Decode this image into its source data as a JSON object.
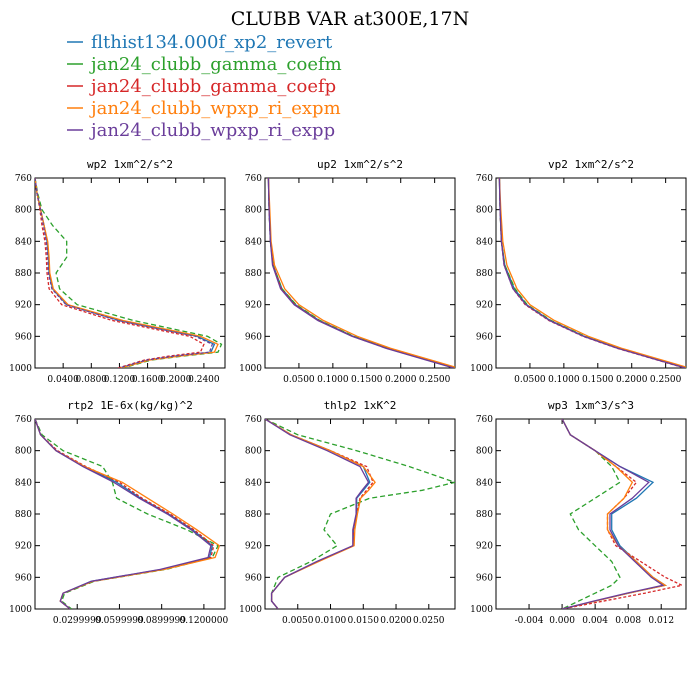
{
  "figure": {
    "title": "CLUBB VAR at300E,17N"
  },
  "legend": [
    {
      "label": "flthist134.000f_xp2_revert",
      "color": "#1f77b4"
    },
    {
      "label": "jan24_clubb_gamma_coefm",
      "color": "#2ca02c"
    },
    {
      "label": "jan24_clubb_gamma_coefp",
      "color": "#d62728"
    },
    {
      "label": "jan24_clubb_wpxp_ri_expm",
      "color": "#ff7f0e"
    },
    {
      "label": "jan24_clubb_wpxp_ri_expp",
      "color": "#6a3d9a"
    }
  ],
  "chart_data": [
    {
      "type": "line",
      "title": "wp2  1xm^2/s^2",
      "xlim": [
        0.0,
        0.27
      ],
      "ylim": [
        760,
        1000
      ],
      "xticks": [
        0.04,
        0.08,
        0.12,
        0.16,
        0.2,
        0.24
      ],
      "xtick_labels": [
        "0.0400",
        "0.0800",
        "0.1200",
        "0.1600",
        "0.2000",
        "0.2400"
      ],
      "yticks": [
        760,
        800,
        840,
        880,
        920,
        960,
        1000
      ],
      "y": [
        760,
        780,
        800,
        820,
        840,
        860,
        880,
        900,
        920,
        940,
        960,
        970,
        980,
        985,
        990,
        1000
      ],
      "series": [
        {
          "values": [
            0.0,
            0.003,
            0.008,
            0.013,
            0.017,
            0.019,
            0.02,
            0.025,
            0.045,
            0.12,
            0.23,
            0.255,
            0.25,
            0.2,
            0.16,
            0.12
          ],
          "color": "#1f77b4",
          "dash": ""
        },
        {
          "values": [
            0.0,
            0.004,
            0.01,
            0.025,
            0.045,
            0.045,
            0.03,
            0.035,
            0.06,
            0.14,
            0.245,
            0.265,
            0.26,
            0.21,
            0.165,
            0.125
          ],
          "color": "#2ca02c",
          "dash": "5,3"
        },
        {
          "values": [
            0.0,
            0.003,
            0.007,
            0.01,
            0.014,
            0.016,
            0.017,
            0.02,
            0.038,
            0.11,
            0.22,
            0.24,
            0.235,
            0.19,
            0.155,
            0.118
          ],
          "color": "#d62728",
          "dash": "3,2"
        },
        {
          "values": [
            0.0,
            0.003,
            0.008,
            0.013,
            0.018,
            0.02,
            0.021,
            0.026,
            0.047,
            0.125,
            0.235,
            0.26,
            0.255,
            0.205,
            0.162,
            0.122
          ],
          "color": "#ff7f0e",
          "dash": ""
        },
        {
          "values": [
            0.0,
            0.003,
            0.008,
            0.012,
            0.016,
            0.018,
            0.019,
            0.024,
            0.044,
            0.118,
            0.228,
            0.252,
            0.248,
            0.198,
            0.158,
            0.12
          ],
          "color": "#6a3d9a",
          "dash": "3,2"
        }
      ]
    },
    {
      "type": "line",
      "title": "up2  1xm^2/s^2",
      "xlim": [
        0.0,
        0.28
      ],
      "ylim": [
        760,
        1000
      ],
      "xticks": [
        0.05,
        0.1,
        0.15,
        0.2,
        0.25
      ],
      "xtick_labels": [
        "0.0500",
        "0.1000",
        "0.1500",
        "0.2000",
        "0.2500"
      ],
      "yticks": [
        760,
        800,
        840,
        880,
        920,
        960,
        1000
      ],
      "y": [
        760,
        800,
        840,
        870,
        900,
        920,
        940,
        960,
        975,
        990,
        1000
      ],
      "series": [
        {
          "values": [
            0.005,
            0.006,
            0.008,
            0.012,
            0.025,
            0.045,
            0.08,
            0.13,
            0.18,
            0.24,
            0.28
          ],
          "color": "#1f77b4",
          "dash": ""
        },
        {
          "values": [
            0.005,
            0.006,
            0.008,
            0.012,
            0.025,
            0.046,
            0.081,
            0.131,
            0.181,
            0.241,
            0.281
          ],
          "color": "#2ca02c",
          "dash": "5,3"
        },
        {
          "values": [
            0.005,
            0.006,
            0.008,
            0.012,
            0.024,
            0.044,
            0.079,
            0.129,
            0.179,
            0.239,
            0.279
          ],
          "color": "#d62728",
          "dash": "3,2"
        },
        {
          "values": [
            0.005,
            0.007,
            0.009,
            0.014,
            0.029,
            0.05,
            0.086,
            0.136,
            0.185,
            0.245,
            0.285
          ],
          "color": "#ff7f0e",
          "dash": ""
        },
        {
          "values": [
            0.005,
            0.006,
            0.008,
            0.011,
            0.023,
            0.043,
            0.078,
            0.128,
            0.178,
            0.238,
            0.278
          ],
          "color": "#6a3d9a",
          "dash": ""
        }
      ]
    },
    {
      "type": "line",
      "title": "vp2  1xm^2/s^2",
      "xlim": [
        0.0,
        0.28
      ],
      "ylim": [
        760,
        1000
      ],
      "xticks": [
        0.05,
        0.1,
        0.15,
        0.2,
        0.25
      ],
      "xtick_labels": [
        "0.0500",
        "0.1000",
        "0.1500",
        "0.2000",
        "0.2500"
      ],
      "yticks": [
        760,
        800,
        840,
        880,
        920,
        960,
        1000
      ],
      "y": [
        760,
        800,
        840,
        870,
        900,
        920,
        940,
        960,
        975,
        990,
        1000
      ],
      "series": [
        {
          "values": [
            0.005,
            0.006,
            0.008,
            0.013,
            0.027,
            0.045,
            0.08,
            0.13,
            0.18,
            0.24,
            0.28
          ],
          "color": "#1f77b4",
          "dash": ""
        },
        {
          "values": [
            0.005,
            0.006,
            0.008,
            0.013,
            0.028,
            0.046,
            0.081,
            0.131,
            0.181,
            0.241,
            0.281
          ],
          "color": "#2ca02c",
          "dash": "5,3"
        },
        {
          "values": [
            0.005,
            0.006,
            0.008,
            0.012,
            0.025,
            0.043,
            0.078,
            0.128,
            0.178,
            0.238,
            0.278
          ],
          "color": "#d62728",
          "dash": "3,2"
        },
        {
          "values": [
            0.005,
            0.007,
            0.01,
            0.016,
            0.031,
            0.05,
            0.086,
            0.136,
            0.185,
            0.245,
            0.285
          ],
          "color": "#ff7f0e",
          "dash": ""
        },
        {
          "values": [
            0.005,
            0.006,
            0.008,
            0.012,
            0.025,
            0.044,
            0.079,
            0.129,
            0.179,
            0.239,
            0.279
          ],
          "color": "#6a3d9a",
          "dash": ""
        }
      ]
    },
    {
      "type": "line",
      "title": "rtp2  1E-6x(kg/kg)^2",
      "xlim": [
        0.0,
        0.135
      ],
      "ylim": [
        760,
        1000
      ],
      "xticks": [
        0.03,
        0.06,
        0.09,
        0.12
      ],
      "xtick_labels": [
        "0.0299999",
        "0.0599999",
        "0.0899999",
        "0.1200000"
      ],
      "yticks": [
        760,
        800,
        840,
        880,
        920,
        960,
        1000
      ],
      "y": [
        760,
        780,
        800,
        820,
        840,
        860,
        880,
        900,
        920,
        935,
        950,
        965,
        980,
        990,
        1000
      ],
      "series": [
        {
          "values": [
            0.0,
            0.004,
            0.015,
            0.035,
            0.058,
            0.075,
            0.095,
            0.112,
            0.126,
            0.124,
            0.09,
            0.04,
            0.02,
            0.018,
            0.025
          ],
          "color": "#1f77b4",
          "dash": ""
        },
        {
          "values": [
            0.0,
            0.005,
            0.02,
            0.048,
            0.055,
            0.058,
            0.08,
            0.108,
            0.13,
            0.126,
            0.093,
            0.042,
            0.021,
            0.019,
            0.026
          ],
          "color": "#2ca02c",
          "dash": "5,3"
        },
        {
          "values": [
            0.0,
            0.004,
            0.016,
            0.036,
            0.06,
            0.076,
            0.096,
            0.113,
            0.127,
            0.125,
            0.091,
            0.041,
            0.02,
            0.018,
            0.025
          ],
          "color": "#d62728",
          "dash": "3,2"
        },
        {
          "values": [
            0.0,
            0.004,
            0.015,
            0.035,
            0.062,
            0.08,
            0.098,
            0.115,
            0.131,
            0.128,
            0.092,
            0.041,
            0.02,
            0.018,
            0.025
          ],
          "color": "#ff7f0e",
          "dash": ""
        },
        {
          "values": [
            0.0,
            0.004,
            0.015,
            0.034,
            0.056,
            0.074,
            0.094,
            0.111,
            0.125,
            0.123,
            0.089,
            0.04,
            0.02,
            0.018,
            0.025
          ],
          "color": "#6a3d9a",
          "dash": ""
        }
      ]
    },
    {
      "type": "line",
      "title": "thlp2  1xK^2",
      "xlim": [
        0.0,
        0.029
      ],
      "ylim": [
        760,
        1000
      ],
      "xticks": [
        0.005,
        0.01,
        0.015,
        0.02,
        0.025
      ],
      "xtick_labels": [
        "0.0050",
        "0.0100",
        "0.0150",
        "0.0200",
        "0.0250"
      ],
      "yticks": [
        760,
        800,
        840,
        880,
        920,
        960,
        1000
      ],
      "y": [
        760,
        780,
        800,
        820,
        840,
        850,
        860,
        880,
        900,
        920,
        940,
        960,
        980,
        990,
        1000
      ],
      "series": [
        {
          "values": [
            0.0,
            0.004,
            0.01,
            0.015,
            0.016,
            0.015,
            0.014,
            0.014,
            0.0135,
            0.0135,
            0.008,
            0.003,
            0.001,
            0.001,
            0.002
          ],
          "color": "#1f77b4",
          "dash": ""
        },
        {
          "values": [
            0.0,
            0.005,
            0.014,
            0.022,
            0.029,
            0.024,
            0.016,
            0.01,
            0.009,
            0.011,
            0.007,
            0.002,
            0.001,
            0.001,
            0.002
          ],
          "color": "#2ca02c",
          "dash": "5,3"
        },
        {
          "values": [
            0.0,
            0.004,
            0.01,
            0.0155,
            0.0165,
            0.0155,
            0.0145,
            0.014,
            0.0135,
            0.0135,
            0.008,
            0.003,
            0.001,
            0.001,
            0.002
          ],
          "color": "#d62728",
          "dash": "3,2"
        },
        {
          "values": [
            0.0,
            0.004,
            0.01,
            0.015,
            0.0168,
            0.0158,
            0.0146,
            0.0141,
            0.0137,
            0.0136,
            0.0082,
            0.003,
            0.001,
            0.001,
            0.002
          ],
          "color": "#ff7f0e",
          "dash": ""
        },
        {
          "values": [
            0.0,
            0.0038,
            0.0095,
            0.0145,
            0.0158,
            0.0148,
            0.0139,
            0.0139,
            0.0134,
            0.0134,
            0.0079,
            0.003,
            0.001,
            0.001,
            0.002
          ],
          "color": "#6a3d9a",
          "dash": ""
        }
      ]
    },
    {
      "type": "line",
      "title": "wp3  1xm^3/s^3",
      "xlim": [
        -0.008,
        0.015
      ],
      "ylim": [
        760,
        1000
      ],
      "xticks": [
        -0.004,
        0.0,
        0.004,
        0.008,
        0.012
      ],
      "xtick_labels": [
        "-0.004",
        "0.000",
        "0.004",
        "0.008",
        "0.012"
      ],
      "yticks": [
        760,
        800,
        840,
        880,
        920,
        960,
        1000
      ],
      "y": [
        760,
        780,
        800,
        820,
        840,
        860,
        880,
        900,
        920,
        940,
        960,
        970,
        980,
        990,
        1000
      ],
      "series": [
        {
          "values": [
            0.0,
            0.001,
            0.004,
            0.007,
            0.011,
            0.009,
            0.006,
            0.006,
            0.007,
            0.009,
            0.011,
            0.0125,
            0.008,
            0.004,
            0.0
          ],
          "color": "#1f77b4",
          "dash": ""
        },
        {
          "values": [
            0.0,
            0.001,
            0.004,
            0.006,
            0.007,
            0.004,
            0.001,
            0.002,
            0.004,
            0.006,
            0.007,
            0.006,
            0.004,
            0.002,
            0.0
          ],
          "color": "#2ca02c",
          "dash": "5,3"
        },
        {
          "values": [
            0.0,
            0.001,
            0.004,
            0.0065,
            0.009,
            0.0075,
            0.0055,
            0.0055,
            0.0065,
            0.0095,
            0.0125,
            0.0145,
            0.01,
            0.005,
            0.0
          ],
          "color": "#d62728",
          "dash": "3,2"
        },
        {
          "values": [
            0.0,
            0.001,
            0.004,
            0.0065,
            0.0085,
            0.0075,
            0.0055,
            0.0055,
            0.0068,
            0.009,
            0.011,
            0.0125,
            0.008,
            0.004,
            0.0
          ],
          "color": "#ff7f0e",
          "dash": ""
        },
        {
          "values": [
            0.0,
            0.001,
            0.004,
            0.007,
            0.0105,
            0.0085,
            0.0058,
            0.0058,
            0.0068,
            0.0088,
            0.0108,
            0.0122,
            0.0078,
            0.0038,
            0.0
          ],
          "color": "#6a3d9a",
          "dash": ""
        }
      ]
    }
  ]
}
